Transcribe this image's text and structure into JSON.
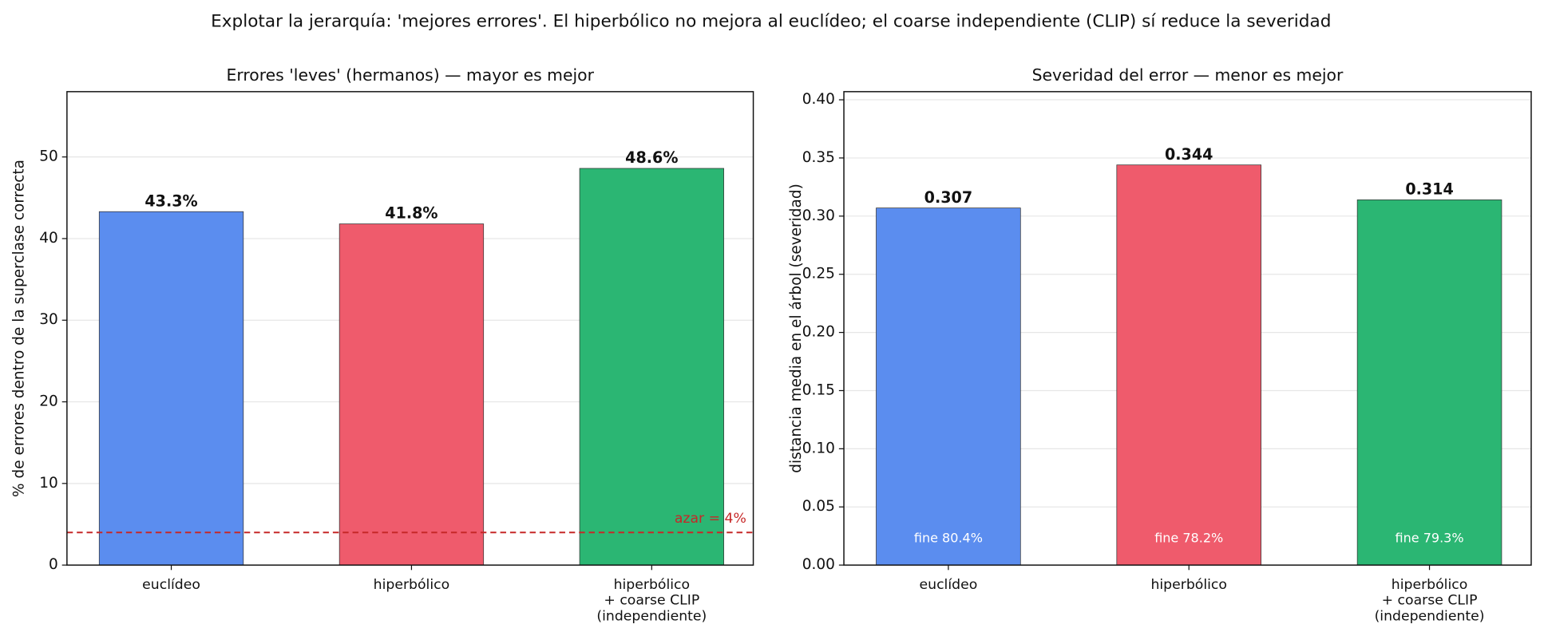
{
  "suptitle": "Explotar la jerarquía: 'mejores errores'. El hiperbólico no mejora al euclídeo; el coarse independiente (CLIP) sí reduce la severidad",
  "chart_data": [
    {
      "type": "bar",
      "title": "Errores 'leves' (hermanos)  —  mayor es mejor",
      "ylabel": "% de errores dentro de la superclase correcta",
      "categories": [
        "euclídeo",
        "hiperbólico",
        "hiperbólico\n+ coarse CLIP\n(independiente)"
      ],
      "values": [
        43.3,
        41.8,
        48.6
      ],
      "value_labels": [
        "43.3%",
        "41.8%",
        "48.6%"
      ],
      "colors": [
        "#5b8def",
        "#ef5b6c",
        "#2bb673"
      ],
      "ylim": [
        0,
        58
      ],
      "yticks": [
        0,
        10,
        20,
        30,
        40,
        50
      ],
      "grid": true,
      "hline": {
        "value": 4,
        "color": "#c62828",
        "label": "azar = 4%"
      }
    },
    {
      "type": "bar",
      "title": "Severidad del error  —  menor es mejor",
      "ylabel": "distancia media en el árbol (severidad)",
      "categories": [
        "euclídeo",
        "hiperbólico",
        "hiperbólico\n+ coarse CLIP\n(independiente)"
      ],
      "values": [
        0.307,
        0.344,
        0.314
      ],
      "inner_labels": [
        "fine 80.4%",
        "fine 78.2%",
        "fine 79.3%"
      ],
      "colors": [
        "#5b8def",
        "#ef5b6c",
        "#2bb673"
      ],
      "ylim": [
        0,
        0.407
      ],
      "yticks": [
        {
          "value": 0,
          "label": "0.00"
        },
        {
          "value": 0.05,
          "label": "0.05"
        },
        {
          "value": 0.1,
          "label": "0.10"
        },
        {
          "value": 0.15,
          "label": "0.15"
        },
        {
          "value": 0.2,
          "label": "0.20"
        },
        {
          "value": 0.25,
          "label": "0.25"
        },
        {
          "value": 0.3,
          "label": "0.30"
        },
        {
          "value": 0.35,
          "label": "0.35"
        },
        {
          "value": 0.4,
          "label": "0.40"
        }
      ],
      "grid": true
    }
  ]
}
